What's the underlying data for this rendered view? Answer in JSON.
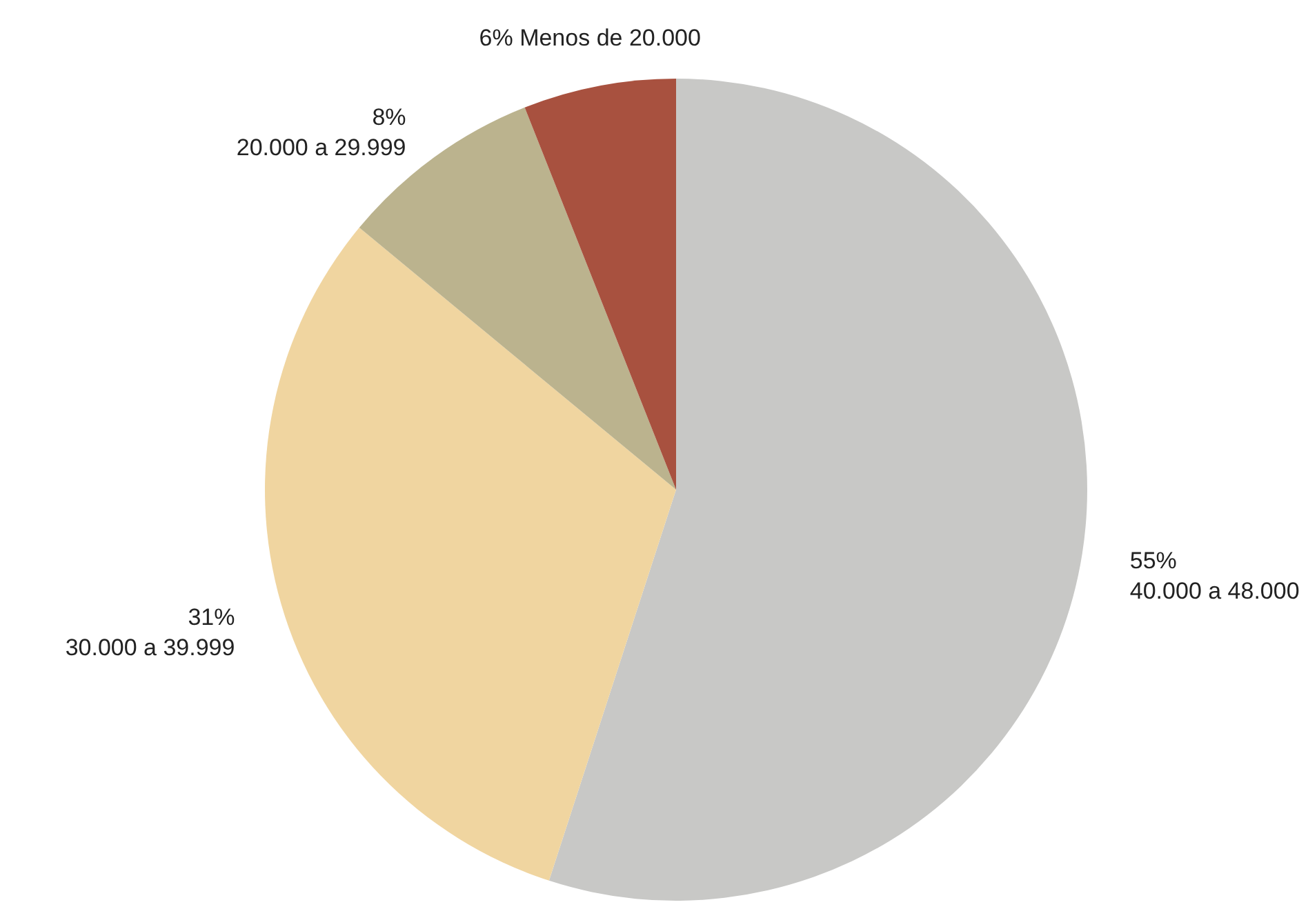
{
  "chart_data": {
    "type": "pie",
    "categories": [
      "40.000 a 48.000",
      "30.000 a 39.999",
      "20.000 a 29.999",
      "Menos de 20.000"
    ],
    "values": [
      55,
      31,
      8,
      6
    ],
    "colors": [
      "#c8c8c6",
      "#f0d5a0",
      "#bbb38e",
      "#a8513f"
    ],
    "value_labels": [
      "55%",
      "31%",
      "8%",
      "6%"
    ]
  }
}
